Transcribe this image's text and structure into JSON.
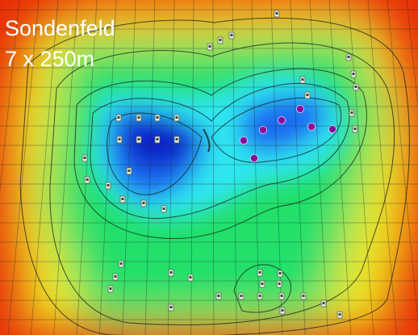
{
  "title": {
    "line1": "Sondenfeld",
    "line2": "7 x 250m"
  },
  "legend_colors": {
    "deep": "#0a22c8",
    "cold": "#1a6cf0",
    "cool": "#2ee6f0",
    "mid": "#22e06a",
    "warm": "#f0e81e",
    "hot": "#f07a10",
    "edge": "#e82c08"
  },
  "marker_colors": {
    "active_probe": "#8a0a9a",
    "sensor": "#e8ecdf"
  },
  "probe_count": 7,
  "sensor_count": 44
}
